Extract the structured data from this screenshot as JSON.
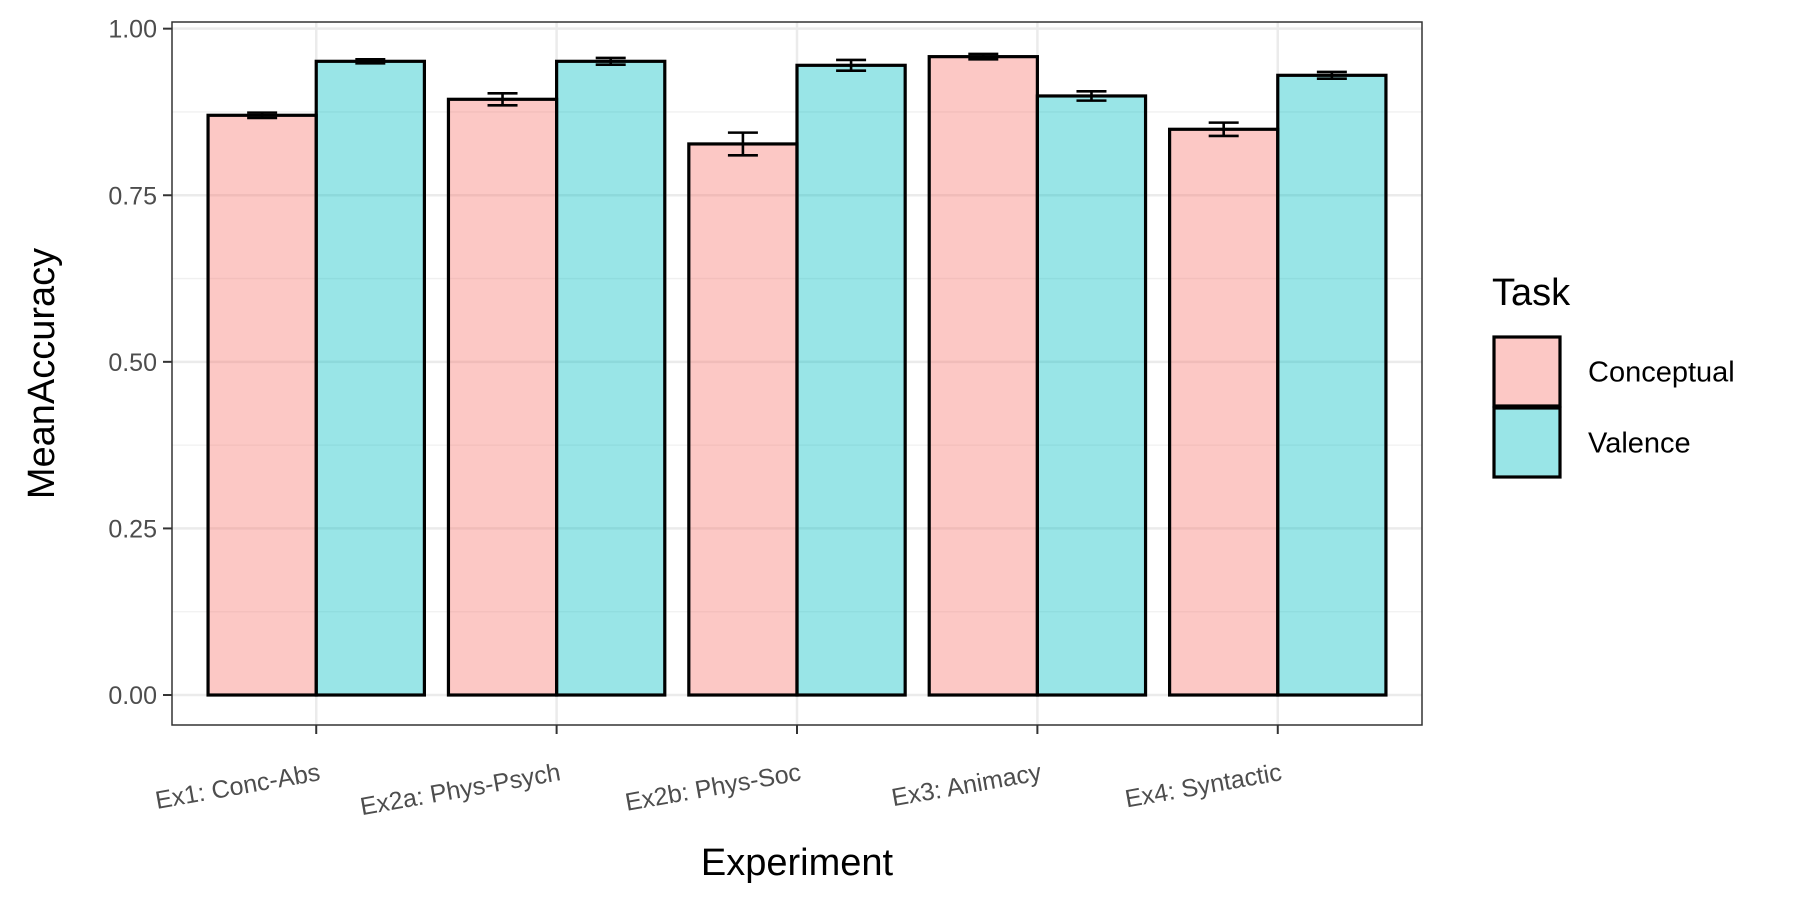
{
  "chart_data": {
    "type": "bar",
    "xlabel": "Experiment",
    "ylabel": "MeanAccuracy",
    "ylim": [
      -0.045,
      1.01
    ],
    "yticks": [
      0.0,
      0.25,
      0.5,
      0.75,
      1.0
    ],
    "ytick_labels": [
      "0.00",
      "0.25",
      "0.50",
      "0.75",
      "1.00"
    ],
    "categories": [
      "Ex1: Conc-Abs",
      "Ex2a: Phys-Psych",
      "Ex2b: Phys-Soc",
      "Ex3: Animacy",
      "Ex4: Syntactic"
    ],
    "series": [
      {
        "name": "Conceptual",
        "color": "#F8766D",
        "values": [
          0.87,
          0.894,
          0.827,
          0.958,
          0.849
        ],
        "error": [
          0.004,
          0.009,
          0.017,
          0.004,
          0.01
        ]
      },
      {
        "name": "Valence",
        "color": "#00BFC4",
        "values": [
          0.951,
          0.951,
          0.945,
          0.899,
          0.93
        ],
        "error": [
          0.003,
          0.005,
          0.008,
          0.007,
          0.005
        ]
      }
    ],
    "bar_alpha": 0.4,
    "grid": true,
    "legend": {
      "title": "Task",
      "placement": "right"
    }
  }
}
